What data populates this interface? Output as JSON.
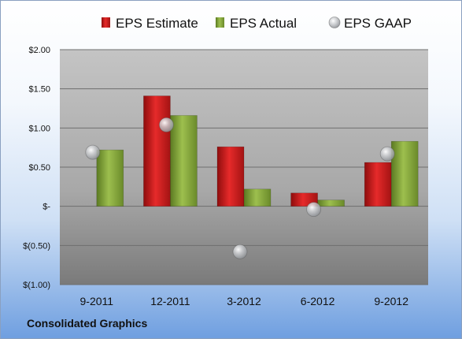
{
  "company": "Consolidated Graphics",
  "chart_data": {
    "type": "bar",
    "categories": [
      "9-2011",
      "12-2011",
      "3-2012",
      "6-2012",
      "9-2012"
    ],
    "series": [
      {
        "name": "EPS Estimate",
        "kind": "bar",
        "color": "#cc1c1c",
        "values": [
          null,
          1.41,
          0.76,
          0.17,
          0.56
        ]
      },
      {
        "name": "EPS Actual",
        "kind": "bar",
        "color": "#86a83c",
        "values": [
          0.72,
          1.16,
          0.22,
          0.08,
          0.83
        ]
      },
      {
        "name": "EPS GAAP",
        "kind": "marker",
        "color": "#a9acb0",
        "values": [
          0.69,
          1.04,
          -0.58,
          -0.04,
          0.67
        ]
      }
    ],
    "y_ticks": [
      {
        "value": 2.0,
        "label": "$2.00"
      },
      {
        "value": 1.5,
        "label": "$1.50"
      },
      {
        "value": 1.0,
        "label": "$1.00"
      },
      {
        "value": 0.5,
        "label": "$0.50"
      },
      {
        "value": 0.0,
        "label": "$-"
      },
      {
        "value": -0.5,
        "label": "$(0.50)"
      },
      {
        "value": -1.0,
        "label": "$(1.00)"
      }
    ],
    "ylim": [
      -1.0,
      2.0
    ],
    "grid": true,
    "legend_position": "top",
    "title": "",
    "xlabel": "",
    "ylabel": ""
  }
}
